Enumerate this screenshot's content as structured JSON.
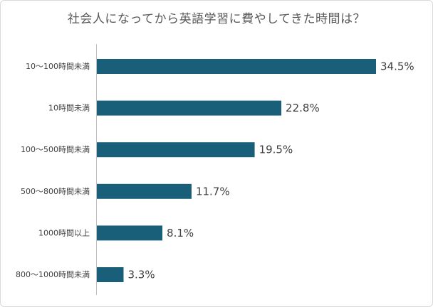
{
  "chart_data": {
    "type": "bar",
    "orientation": "horizontal",
    "title": "社会人になってから英語学習に費やしてきた時間は？",
    "categories": [
      "10〜100時間未満",
      "10時間未満",
      "100〜500時間未満",
      "500〜800時間未満",
      "1000時間以上",
      "800〜1000時間未満"
    ],
    "values": [
      34.5,
      22.8,
      19.5,
      11.7,
      8.1,
      3.3
    ],
    "value_labels": [
      "34.5%",
      "22.8%",
      "19.5%",
      "11.7%",
      "8.1%",
      "3.3%"
    ],
    "xlabel": "",
    "ylabel": "",
    "xlim": [
      0,
      35
    ],
    "grid": false,
    "legend": "none",
    "bar_color": "#1a5f7a",
    "axis_color": "#bfbfbf"
  }
}
